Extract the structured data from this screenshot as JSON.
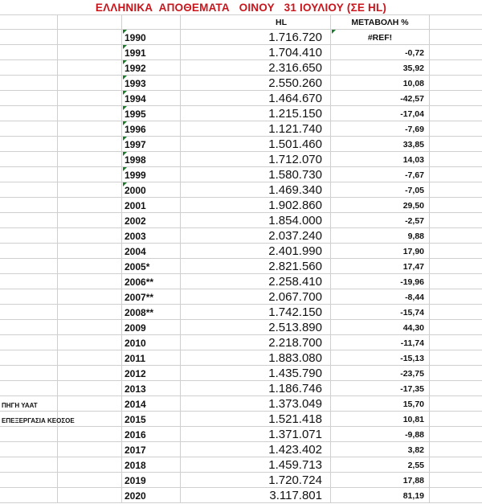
{
  "title": "ΕΛΛΗΝΙΚΑ  ΑΠΟΘΕΜΑΤΑ   ΟΙΝΟΥ   31 ΙΟΥΛΙΟΥ (ΣΕ HL)",
  "headers": {
    "hl": "HL",
    "change": "ΜΕΤΑΒΟΛΗ %"
  },
  "accent_title_color": "#c8161d",
  "rows": [
    {
      "year": "1990",
      "hl": "1.716.720",
      "change": "#REF!",
      "note": "",
      "flag": true
    },
    {
      "year": "1991",
      "hl": "1.704.410",
      "change": "-0,72",
      "note": "",
      "flag": true
    },
    {
      "year": "1992",
      "hl": "2.316.650",
      "change": "35,92",
      "note": "",
      "flag": true
    },
    {
      "year": "1993",
      "hl": "2.550.260",
      "change": "10,08",
      "note": "",
      "flag": true
    },
    {
      "year": "1994",
      "hl": "1.464.670",
      "change": "-42,57",
      "note": "",
      "flag": true
    },
    {
      "year": "1995",
      "hl": "1.215.150",
      "change": "-17,04",
      "note": "",
      "flag": true
    },
    {
      "year": "1996",
      "hl": "1.121.740",
      "change": "-7,69",
      "note": "",
      "flag": true
    },
    {
      "year": "1997",
      "hl": "1.501.460",
      "change": "33,85",
      "note": "",
      "flag": true
    },
    {
      "year": "1998",
      "hl": "1.712.070",
      "change": "14,03",
      "note": "",
      "flag": true
    },
    {
      "year": "1999",
      "hl": "1.580.730",
      "change": "-7,67",
      "note": "",
      "flag": true
    },
    {
      "year": "2000",
      "hl": "1.469.340",
      "change": "-7,05",
      "note": "",
      "flag": true
    },
    {
      "year": "2001",
      "hl": "1.902.860",
      "change": "29,50",
      "note": ""
    },
    {
      "year": "2002",
      "hl": "1.854.000",
      "change": "-2,57",
      "note": ""
    },
    {
      "year": "2003",
      "hl": "2.037.240",
      "change": "9,88",
      "note": ""
    },
    {
      "year": "2004",
      "hl": "2.401.990",
      "change": "17,90",
      "note": ""
    },
    {
      "year": "2005*",
      "hl": "2.821.560",
      "change": "17,47",
      "note": ""
    },
    {
      "year": "2006**",
      "hl": "2.258.410",
      "change": "-19,96",
      "note": ""
    },
    {
      "year": "2007**",
      "hl": "2.067.700",
      "change": "-8,44",
      "note": ""
    },
    {
      "year": "2008**",
      "hl": "1.742.150",
      "change": "-15,74",
      "note": ""
    },
    {
      "year": "2009",
      "hl": "2.513.890",
      "change": "44,30",
      "note": ""
    },
    {
      "year": "2010",
      "hl": "2.218.700",
      "change": "-11,74",
      "note": ""
    },
    {
      "year": "2011",
      "hl": "1.883.080",
      "change": "-15,13",
      "note": ""
    },
    {
      "year": "2012",
      "hl": "1.435.790",
      "change": "-23,75",
      "note": ""
    },
    {
      "year": "2013",
      "hl": "1.186.746",
      "change": "-17,35",
      "note": ""
    },
    {
      "year": "2014",
      "hl": "1.373.049",
      "change": "15,70",
      "note": "ΠΗΓΗ ΥΑΑΤ"
    },
    {
      "year": "2015",
      "hl": "1.521.418",
      "change": "10,81",
      "note": "ΕΠΕΞΕΡΓΑΣΙΑ ΚΕΟΣΟΕ"
    },
    {
      "year": "2016",
      "hl": "1.371.071",
      "change": "-9,88",
      "note": ""
    },
    {
      "year": "2017",
      "hl": "1.423.402",
      "change": "3,82",
      "note": ""
    },
    {
      "year": "2018",
      "hl": "1.459.713",
      "change": "2,55",
      "note": ""
    },
    {
      "year": "2019",
      "hl": "1.720.724",
      "change": "17,88",
      "note": ""
    },
    {
      "year": "2020",
      "hl": "3.117.801",
      "change": "81,19",
      "note": ""
    }
  ]
}
